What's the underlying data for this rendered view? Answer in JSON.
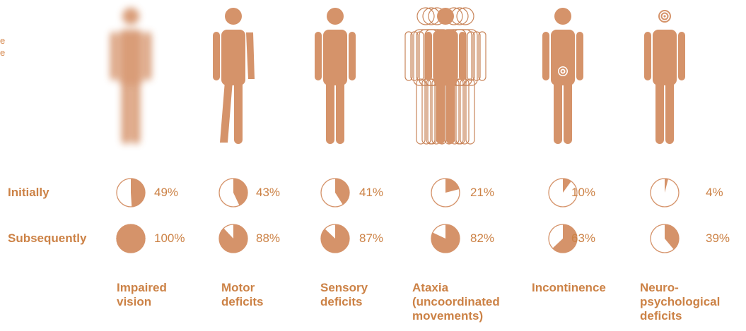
{
  "intro_fragment": "e\ne",
  "row_labels": {
    "initially": "Initially",
    "subsequently": "Subsequently"
  },
  "colors": {
    "fill": "#d5936a",
    "text": "#cc8246",
    "outline": "#c9855a"
  },
  "chart_data": {
    "type": "pie",
    "title": "",
    "categories": [
      "Impaired\nvision",
      "Motor\ndeficits",
      "Sensory\ndeficits",
      "Ataxia\n(uncoordinated\nmovements)",
      "Incontinence",
      "Neuro-\npsychological\ndeficits"
    ],
    "series": [
      {
        "name": "Initially",
        "values": [
          49,
          43,
          41,
          21,
          10,
          4
        ]
      },
      {
        "name": "Subsequently",
        "values": [
          100,
          88,
          87,
          82,
          63,
          39
        ]
      }
    ],
    "value_labels": {
      "initially": [
        "49%",
        "43%",
        "41%",
        "21%",
        "10%",
        "4%"
      ],
      "subsequently": [
        "100%",
        "88%",
        "87%",
        "82%",
        "63%",
        "39%"
      ]
    },
    "unit": "%",
    "figure_icons": [
      "blurred-figure-icon",
      "limping-figure-icon",
      "standing-figure-icon",
      "swaying-figure-icon",
      "target-pelvis-figure-icon",
      "target-head-figure-icon"
    ]
  }
}
